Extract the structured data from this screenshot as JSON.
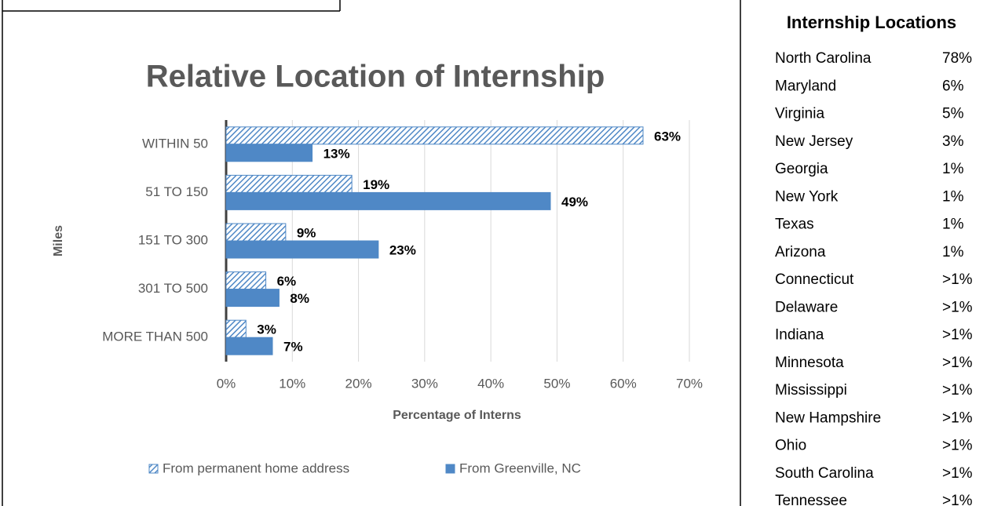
{
  "chart_data": {
    "type": "bar",
    "orientation": "horizontal",
    "title": "Relative Location of Internship",
    "categories": [
      "WITHIN 50",
      "51 TO 150",
      "151 TO 300",
      "301 TO 500",
      "MORE THAN 500"
    ],
    "series": [
      {
        "name": "From permanent home address",
        "color": "#4f88c6",
        "pattern": "hatch",
        "values": [
          63,
          19,
          9,
          6,
          3
        ],
        "value_labels": [
          "63%",
          "19%",
          "9%",
          "6%",
          "3%"
        ]
      },
      {
        "name": "From Greenville, NC",
        "color": "#4f88c6",
        "pattern": "solid",
        "values": [
          13,
          49,
          23,
          8,
          7
        ],
        "value_labels": [
          "13%",
          "49%",
          "23%",
          "8%",
          "7%"
        ]
      }
    ],
    "xlim": [
      0,
      70
    ],
    "xticks": [
      {
        "value": 0,
        "label": "0%"
      },
      {
        "value": 10,
        "label": "10%"
      },
      {
        "value": 20,
        "label": "20%"
      },
      {
        "value": 30,
        "label": "30%"
      },
      {
        "value": 40,
        "label": "40%"
      },
      {
        "value": 50,
        "label": "50%"
      },
      {
        "value": 60,
        "label": "60%"
      },
      {
        "value": 70,
        "label": "70%"
      }
    ],
    "x_label": "Percentage of Interns",
    "y_label": "Miles",
    "grid": true,
    "legend": "bottom"
  },
  "table": {
    "title": "Internship Locations",
    "rows": [
      [
        "North Carolina",
        "78%"
      ],
      [
        "Maryland",
        "6%"
      ],
      [
        "Virginia",
        "5%"
      ],
      [
        "New Jersey",
        "3%"
      ],
      [
        "Georgia",
        "1%"
      ],
      [
        "New York",
        "1%"
      ],
      [
        "Texas",
        "1%"
      ],
      [
        "Arizona",
        "1%"
      ],
      [
        "Connecticut",
        ">1%"
      ],
      [
        "Delaware",
        ">1%"
      ],
      [
        "Indiana",
        ">1%"
      ],
      [
        "Minnesota",
        ">1%"
      ],
      [
        "Mississippi",
        ">1%"
      ],
      [
        "New Hampshire",
        ">1%"
      ],
      [
        "Ohio",
        ">1%"
      ],
      [
        "South Carolina",
        ">1%"
      ],
      [
        "Tennessee",
        ">1%"
      ]
    ]
  }
}
